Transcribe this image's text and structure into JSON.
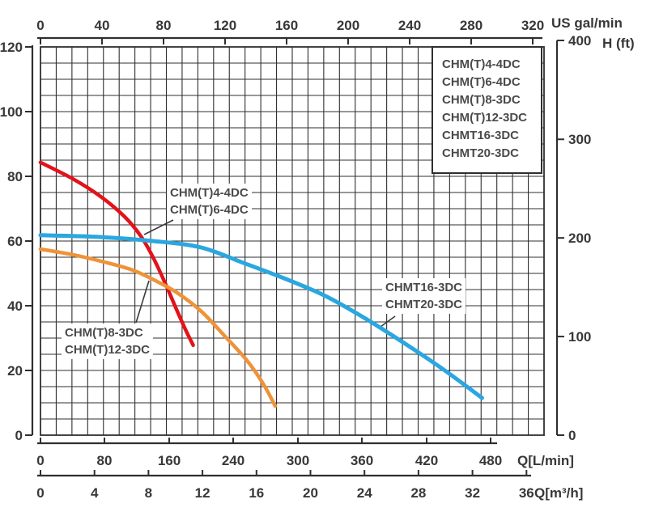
{
  "chart_data": {
    "type": "line",
    "title": "",
    "grid": true,
    "legend_position": "top-right",
    "axes": {
      "top": {
        "unit": "US gal/min",
        "ticks": [
          "0",
          "40",
          "80",
          "120",
          "160",
          "200",
          "240",
          "280",
          "320"
        ]
      },
      "left": {
        "unit": "",
        "ticks": [
          "120",
          "100",
          "80",
          "60",
          "40",
          "20",
          "0"
        ],
        "range_m": [
          0,
          120
        ]
      },
      "right": {
        "unit": "H (ft)",
        "ticks": [
          "400",
          "300",
          "200",
          "100",
          "0"
        ],
        "range_ft": [
          0,
          400
        ]
      },
      "bottom_lmin": {
        "unit": "Q[L/min]",
        "ticks": [
          "0",
          "80",
          "160",
          "240",
          "300",
          "360",
          "420",
          "480"
        ]
      },
      "bottom_m3h": {
        "unit": "Q[m³/h]",
        "ticks": [
          "0",
          "4",
          "8",
          "12",
          "16",
          "20",
          "24",
          "28",
          "32",
          "36"
        ]
      }
    },
    "series": [
      {
        "name": "CHM(T)4-4DC / CHM(T)6-4DC",
        "color": "#e2131b",
        "width": 4.5,
        "q_lmin": [
          0,
          40,
          75,
          105,
          125,
          140,
          155,
          168,
          180,
          190
        ],
        "h_m": [
          84.3,
          79.3,
          73.8,
          67.5,
          61.5,
          55,
          47,
          39.5,
          32.8,
          27.8
        ]
      },
      {
        "name": "CHM(T)8-3DC / CHM(T)12-3DC",
        "color": "#ef9339",
        "width": 4.5,
        "q_lmin": [
          0,
          40,
          80,
          115,
          145,
          170,
          200,
          230,
          253,
          268,
          279
        ],
        "h_m": [
          57.5,
          55.8,
          53.5,
          51,
          47.5,
          44,
          38.3,
          30.5,
          23,
          15.8,
          9
        ]
      },
      {
        "name": "CHMT16-3DC / CHMT20-3DC",
        "color": "#2aa7e0",
        "width": 5,
        "q_lmin": [
          0,
          70,
          140,
          200,
          249,
          287,
          324,
          362,
          399,
          437,
          472
        ],
        "h_m": [
          61.8,
          61.3,
          60,
          58,
          53.3,
          48.5,
          43.3,
          36.3,
          28.5,
          20,
          11.5
        ]
      }
    ]
  },
  "legend": {
    "items": [
      "CHM(T)4-4DC",
      "CHM(T)6-4DC",
      "CHM(T)8-3DC",
      "CHM(T)12-3DC",
      "CHMT16-3DC",
      "CHMT20-3DC"
    ]
  },
  "annotations": {
    "red": {
      "line1": "CHM(T)4-4DC",
      "line2": "CHM(T)6-4DC"
    },
    "orange": {
      "line1": "CHM(T)8-3DC",
      "line2": "CHM(T)12-3DC"
    },
    "blue": {
      "line1": "CHMT16-3DC",
      "line2": "CHMT20-3DC"
    }
  },
  "colors": {
    "grid": "#2f2f2f",
    "axis": "#2f2f2f",
    "text": "#383838"
  }
}
